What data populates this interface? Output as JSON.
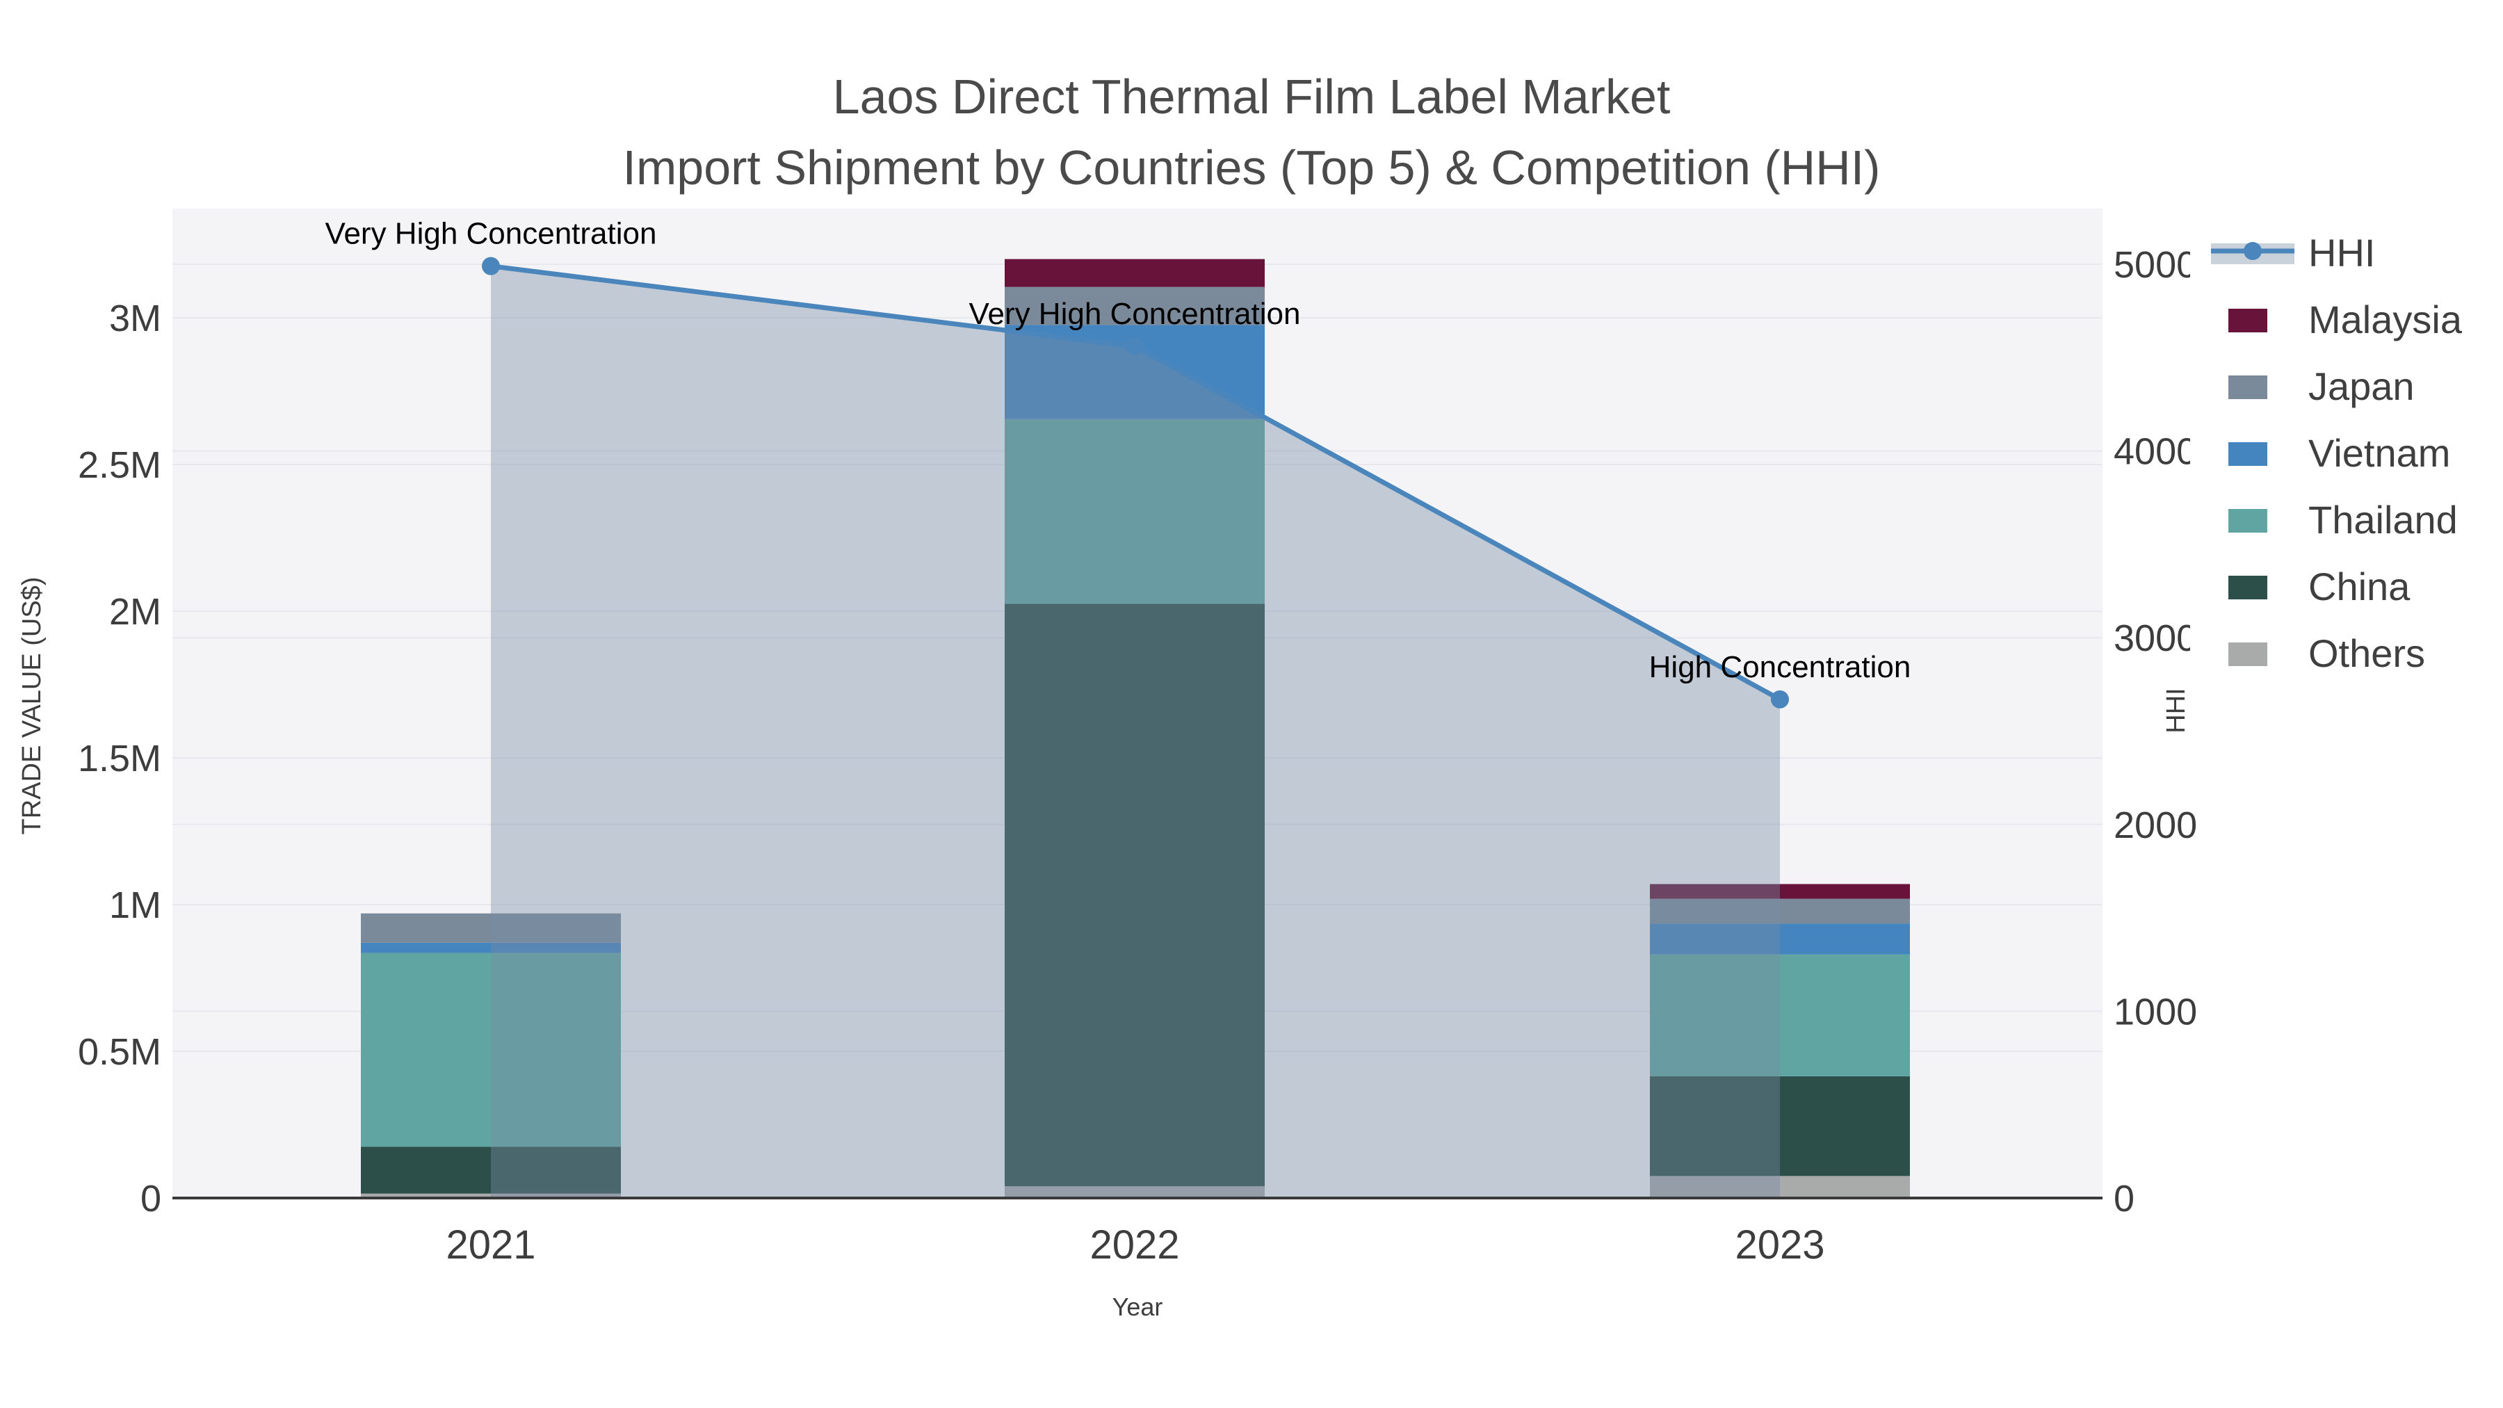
{
  "title": {
    "line1": "Laos Direct Thermal Film Label Market",
    "line2": "Import Shipment by Countries (Top 5) & Competition (HHI)"
  },
  "axes": {
    "x": {
      "title": "Year",
      "tick_labels": [
        "2021",
        "2022",
        "2023"
      ]
    },
    "y_left": {
      "title": "TRADE VALUE (US$)",
      "tick_labels": [
        "0",
        "0.5M",
        "1M",
        "1.5M",
        "2M",
        "2.5M",
        "3M"
      ],
      "tick_values": [
        0,
        500000,
        1000000,
        1500000,
        2000000,
        2500000,
        3000000
      ]
    },
    "y_right": {
      "title": "HHI",
      "tick_labels": [
        "0",
        "1000",
        "2000",
        "3000",
        "4000",
        "5000"
      ],
      "tick_values": [
        0,
        1000,
        2000,
        3000,
        4000,
        5000
      ]
    }
  },
  "legend": {
    "items": [
      {
        "label": "HHI",
        "swatch": "line-area",
        "color_key": "hhi_line"
      },
      {
        "label": "Malaysia",
        "swatch": "rect",
        "color_key": "Malaysia"
      },
      {
        "label": "Japan",
        "swatch": "rect",
        "color_key": "Japan"
      },
      {
        "label": "Vietnam",
        "swatch": "rect",
        "color_key": "Vietnam"
      },
      {
        "label": "Thailand",
        "swatch": "rect",
        "color_key": "Thailand"
      },
      {
        "label": "China",
        "swatch": "rect",
        "color_key": "China"
      },
      {
        "label": "Others",
        "swatch": "rect",
        "color_key": "Others"
      }
    ]
  },
  "colors": {
    "Malaysia": "#68143a",
    "Japan": "#7b8a9b",
    "Vietnam": "#4484bf",
    "Thailand": "#60a5a2",
    "China": "#2d4f4a",
    "Others": "#a9abab",
    "hhi_line": "#4a86bb",
    "hhi_area_fill": "rgba(120,140,165,0.4)",
    "hhi_legend_band": "#c9d1db",
    "plot_bg": "#f4f4f6",
    "grid": "#e7e8ec",
    "axis_line": "#3a3a3a",
    "tick_text": "#3d3d3d",
    "axis_title_text": "#3d3d3d",
    "legend_text": "#3f3f3f",
    "annotation_text": "#000000",
    "figure_bg": "#ffffff"
  },
  "chart_data": {
    "type": "bar+line",
    "title": "Laos Direct Thermal Film Label Market — Import Shipment by Countries (Top 5) & Competition (HHI)",
    "categories": [
      "2021",
      "2022",
      "2023"
    ],
    "xlabel": "Year",
    "ylabel_left": "TRADE VALUE (US$)",
    "ylabel_right": "HHI",
    "ylim_left": [
      0,
      3370000
    ],
    "ylim_right": [
      0,
      5300
    ],
    "grid": true,
    "legend_position": "upper right outside",
    "stack_order_bottom_to_top": [
      "Others",
      "China",
      "Thailand",
      "Vietnam",
      "Japan",
      "Malaysia"
    ],
    "series": [
      {
        "name": "Malaysia",
        "type": "bar-stacked",
        "axis": "left",
        "values": [
          0,
          95000,
          50000
        ]
      },
      {
        "name": "Japan",
        "type": "bar-stacked",
        "axis": "left",
        "values": [
          100000,
          130000,
          85000
        ]
      },
      {
        "name": "Vietnam",
        "type": "bar-stacked",
        "axis": "left",
        "values": [
          35000,
          320000,
          105000
        ]
      },
      {
        "name": "Thailand",
        "type": "bar-stacked",
        "axis": "left",
        "values": [
          660000,
          630000,
          415000
        ]
      },
      {
        "name": "China",
        "type": "bar-stacked",
        "axis": "left",
        "values": [
          160000,
          1985000,
          340000
        ]
      },
      {
        "name": "Others",
        "type": "bar-stacked",
        "axis": "left",
        "values": [
          15000,
          40000,
          75000
        ]
      }
    ],
    "bar_totals": [
      970000,
      3200000,
      1070000
    ],
    "line_series": {
      "name": "HHI",
      "type": "line+area",
      "axis": "right",
      "values": [
        4990,
        4560,
        2670
      ]
    },
    "annotations": [
      {
        "category": "2021",
        "text": "Very High Concentration"
      },
      {
        "category": "2022",
        "text": "Very High Concentration"
      },
      {
        "category": "2023",
        "text": "High Concentration"
      }
    ]
  }
}
